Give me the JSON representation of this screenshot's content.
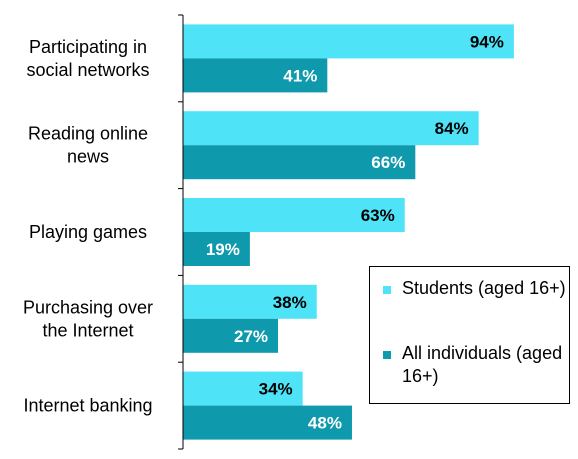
{
  "chart_data": {
    "type": "bar",
    "orientation": "horizontal",
    "categories": [
      "Participating in\nsocial networks",
      "Reading online\nnews",
      "Playing games",
      "Purchasing over\nthe Internet",
      "Internet banking"
    ],
    "series": [
      {
        "name": "Students (aged 16+)",
        "values": [
          94,
          84,
          63,
          38,
          34
        ],
        "color": "#4fe3f8",
        "label_color": "#000000"
      },
      {
        "name": "All individuals (aged 16+)",
        "values": [
          41,
          66,
          19,
          27,
          48
        ],
        "color": "#0e99ac",
        "label_color": "#ffffff"
      }
    ],
    "value_suffix": "%",
    "xlim": [
      0,
      100
    ],
    "grid": false,
    "legend_position": "bottom-right"
  }
}
